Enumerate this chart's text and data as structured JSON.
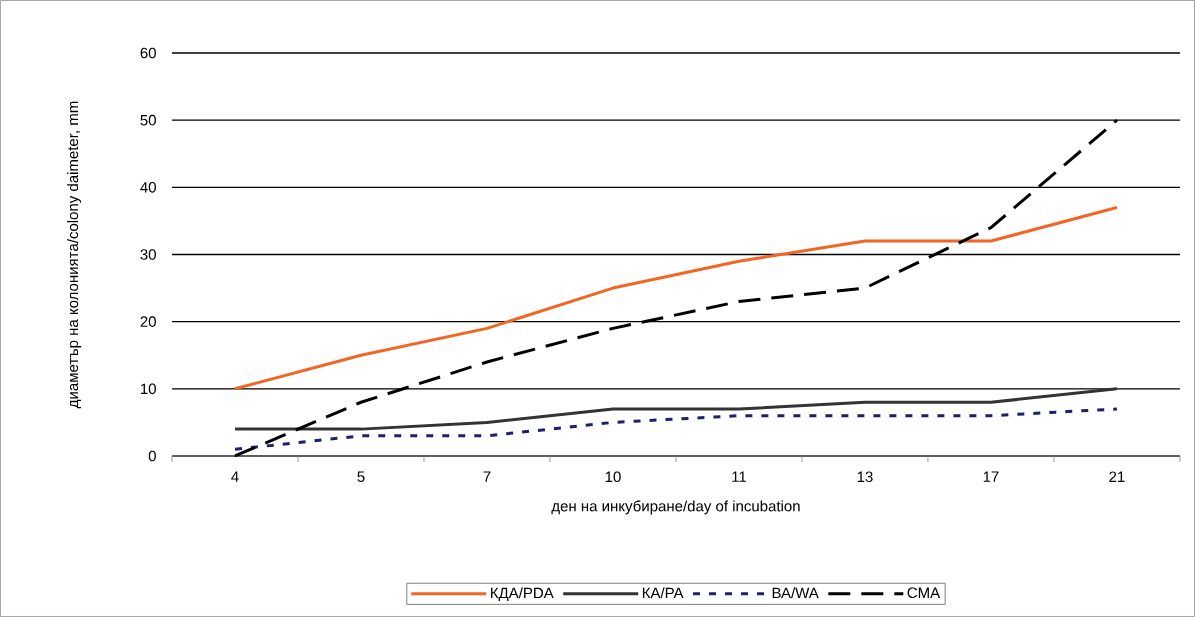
{
  "chart_data": {
    "type": "line",
    "xlabel": "ден на инкубиране/day of incubation",
    "ylabel": "диаметър на колонията/colony daimeter, mm",
    "categories": [
      "4",
      "5",
      "7",
      "10",
      "11",
      "13",
      "17",
      "21"
    ],
    "series": [
      {
        "name": "КДА/PDA",
        "color": "#f26522",
        "line_style": "solid",
        "values": [
          10,
          15,
          19,
          25,
          29,
          32,
          32,
          37
        ]
      },
      {
        "name": "КА/PA",
        "color": "#333333",
        "line_style": "solid",
        "values": [
          4,
          4,
          5,
          7,
          7,
          8,
          8,
          10
        ]
      },
      {
        "name": "ВА/WA",
        "color": "#1f1f6e",
        "line_style": "dotted",
        "values": [
          1,
          3,
          3,
          5,
          6,
          6,
          6,
          7
        ]
      },
      {
        "name": "CMA",
        "color": "#000000",
        "line_style": "dashed",
        "values": [
          0,
          8,
          14,
          19,
          23,
          25,
          34,
          50
        ]
      }
    ],
    "ylim": [
      0,
      60
    ],
    "yticks": [
      0,
      10,
      20,
      30,
      40,
      50,
      60
    ],
    "grid": "y",
    "legend": "bottom",
    "marker": "none"
  }
}
